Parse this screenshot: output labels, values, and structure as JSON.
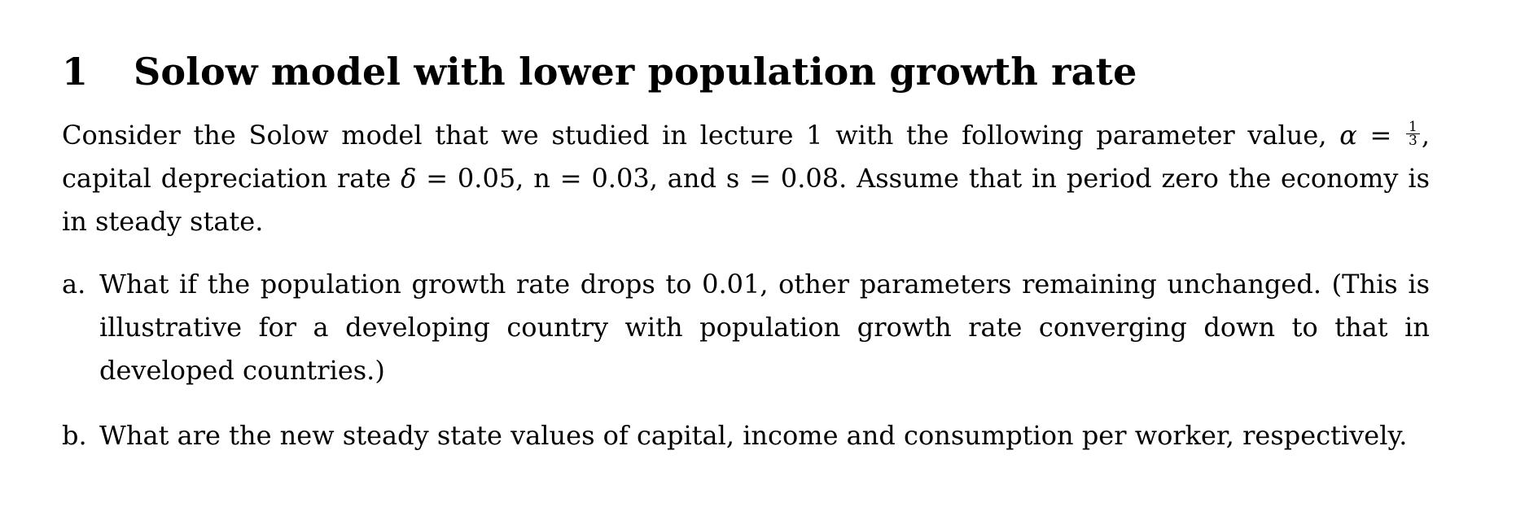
{
  "section": {
    "number": "1",
    "title": "Solow model with lower population growth rate"
  },
  "intro": {
    "part1": "Consider the Solow model that we studied in lecture 1 with the following parameter value, ",
    "alpha_symbol": "α",
    "equals": " = ",
    "alpha_numerator": "1",
    "alpha_denominator": "3",
    "part2": ", capital depreciation rate ",
    "delta_symbol": "δ",
    "part3": " = 0.05, n = 0.03, and s = 0.08.  Assume that in period zero the economy is in steady state."
  },
  "items": [
    {
      "marker": "a.",
      "text": "What if the population growth rate drops to 0.01, other parameters remaining unchanged.  (This is illustrative for a developing country with population growth rate converging down to that in developed countries.)"
    },
    {
      "marker": "b.",
      "text": "What are the new steady state values of capital, income and consumption per worker, respectively."
    }
  ]
}
